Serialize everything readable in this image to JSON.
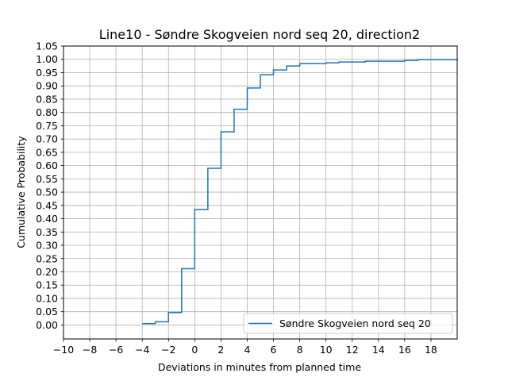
{
  "chart_data": {
    "type": "line",
    "step": true,
    "title": "Line10 - Søndre Skogveien nord seq 20, direction2",
    "xlabel": "Deviations in minutes from planned time",
    "ylabel": "Cumulative Probability",
    "xlim": [
      -10,
      20
    ],
    "ylim": [
      -0.0525,
      1.05
    ],
    "x_ticks": [
      -10,
      -8,
      -6,
      -4,
      -2,
      0,
      2,
      4,
      6,
      8,
      10,
      12,
      14,
      16,
      18
    ],
    "x_tick_labels": [
      "−10",
      "−8",
      "−6",
      "−4",
      "−2",
      "0",
      "2",
      "4",
      "6",
      "8",
      "10",
      "12",
      "14",
      "16",
      "18"
    ],
    "y_ticks": [
      0,
      0.05,
      0.1,
      0.15,
      0.2,
      0.25,
      0.3,
      0.35,
      0.4,
      0.45,
      0.5,
      0.55,
      0.6,
      0.65,
      0.7,
      0.75,
      0.8,
      0.85,
      0.9,
      0.95,
      1.0,
      1.05
    ],
    "y_tick_labels": [
      "0.00",
      "0.05",
      "0.10",
      "0.15",
      "0.20",
      "0.25",
      "0.30",
      "0.35",
      "0.40",
      "0.45",
      "0.50",
      "0.55",
      "0.60",
      "0.65",
      "0.70",
      "0.75",
      "0.80",
      "0.85",
      "0.90",
      "0.95",
      "1.00",
      "1.05"
    ],
    "grid": true,
    "legend_position": "lower-right",
    "series": [
      {
        "name": "Søndre Skogveien nord seq 20",
        "color": "#1f77b4",
        "x": [
          -4,
          -3,
          -2,
          -1,
          0,
          1,
          2,
          3,
          4,
          5,
          6,
          7,
          8,
          10,
          11,
          13,
          16,
          17,
          20
        ],
        "y": [
          0.005,
          0.012,
          0.047,
          0.212,
          0.435,
          0.59,
          0.727,
          0.812,
          0.892,
          0.942,
          0.96,
          0.975,
          0.984,
          0.987,
          0.99,
          0.993,
          0.996,
          0.999,
          1.0
        ]
      }
    ]
  }
}
